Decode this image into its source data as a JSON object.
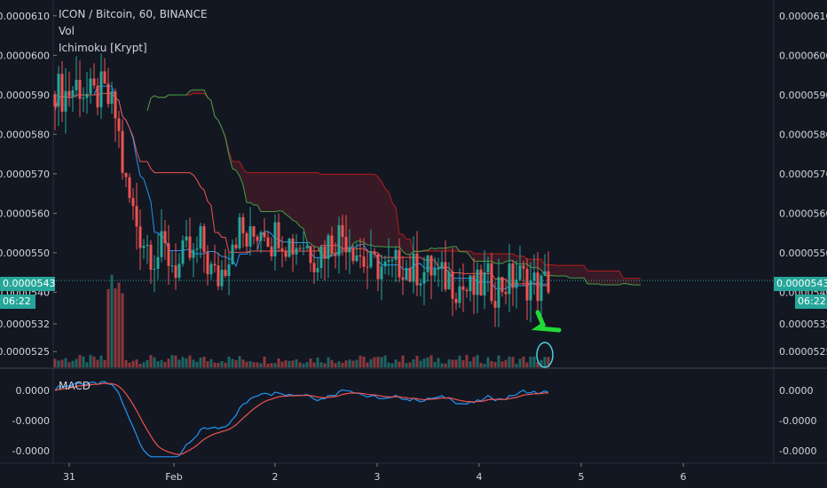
{
  "header": {
    "title": "ICON / Bitcoin, 60, BINANCE",
    "indicator_vol": "Vol",
    "indicator_ichimoku": "Ichimoku [Krypt]",
    "indicator_macd": "MACD"
  },
  "price_tag": "0.0000543",
  "countdown": "06:22",
  "colors": {
    "background": "#131722",
    "up": "#26a69a",
    "down": "#ef5350",
    "tenkan": "#2196f3",
    "kijun": "#ef5350",
    "span_a": "#43a047",
    "span_b": "#b71c1c",
    "cloud": "#7a1f2a",
    "macd": "#2196f3",
    "signal": "#ef5350",
    "annotation": "#21d936"
  },
  "chart_data": {
    "type": "candlestick",
    "price_axis_ticks": [
      "0.0000610",
      "0.0000600",
      "0.0000590",
      "0.0000580",
      "0.0000570",
      "0.0000560",
      "0.0000550",
      "0.0000540",
      "0.0000532",
      "0.0000525"
    ],
    "macd_axis_ticks": [
      "0.0000",
      "-0.0000",
      "-0.0000"
    ],
    "x_tick_labels": [
      "31",
      "Feb",
      "2",
      "3",
      "4",
      "5",
      "6"
    ],
    "ylim": [
      5.21e-05,
      6.14e-05
    ],
    "current_price": 5.43e-05,
    "close_series": [
      5.92e-05,
      5.9e-05,
      5.91e-05,
      5.93e-05,
      5.9e-05,
      5.89e-05,
      5.91e-05,
      5.88e-05,
      5.84e-05,
      5.68e-05,
      5.61e-05,
      5.55e-05,
      5.52e-05,
      5.49e-05,
      5.51e-05,
      5.48e-05,
      5.46e-05,
      5.5e-05,
      5.48e-05,
      5.53e-05,
      5.46e-05,
      5.43e-05,
      5.47e-05,
      5.54e-05,
      5.56e-05,
      5.52e-05,
      5.55e-05,
      5.58e-05,
      5.53e-05,
      5.56e-05,
      5.53e-05,
      5.52e-05,
      5.53e-05,
      5.51e-05,
      5.49e-05,
      5.52e-05,
      5.53e-05,
      5.55e-05,
      5.54e-05,
      5.51e-05,
      5.48e-05,
      5.46e-05,
      5.47e-05,
      5.45e-05,
      5.46e-05,
      5.48e-05,
      5.45e-05,
      5.46e-05,
      5.45e-05,
      5.46e-05,
      5.43e-05,
      5.44e-05,
      5.42e-05,
      5.41e-05,
      5.4e-05,
      5.41e-05,
      5.43e-05,
      5.41e-05,
      5.42e-05,
      5.43e-05,
      5.44e-05,
      5.43e-05,
      5.42e-05,
      5.41e-05,
      5.43e-05
    ],
    "volume_note": "volume bars along bottom of price pane",
    "annotations": [
      "green hand-drawn arrow",
      "circle around last volume bar"
    ]
  }
}
